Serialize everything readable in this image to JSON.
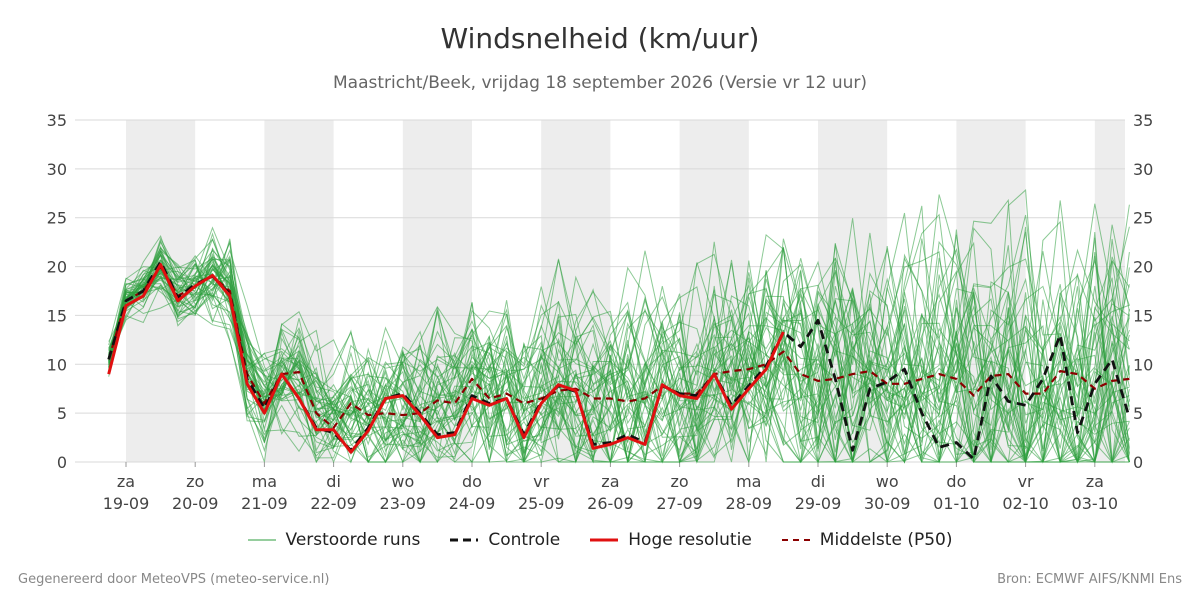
{
  "header": {
    "title": "Windsnelheid (km/uur)",
    "subtitle": "Maastricht/Beek, vrijdag 18 september 2026 (Versie vr 12 uur)"
  },
  "footer": {
    "left": "Gegenereerd door MeteoVPS (meteo-service.nl)",
    "right": "Bron: ECMWF AIFS/KNMI Ens"
  },
  "legend": {
    "ensemble": "Verstoorde runs",
    "control": "Controle",
    "hires": "Hoge resolutie",
    "median": "Middelste (P50)"
  },
  "colors": {
    "ensemble": "#2e9e3e",
    "control": "#111111",
    "hires": "#e01010",
    "median": "#8b0000",
    "band": "#ededed",
    "grid": "#d9d9d9"
  },
  "chart_data": {
    "type": "line",
    "x_unit": "days since 19-09 00:00 (label position = midnight of each day)",
    "xlim": [
      0,
      15.5
    ],
    "ylim": [
      0,
      35
    ],
    "yticks": [
      0,
      5,
      10,
      15,
      20,
      25,
      30,
      35
    ],
    "grid": true,
    "legend_position": "bottom",
    "shaded_bands": [
      [
        0,
        1
      ],
      [
        2,
        3
      ],
      [
        4,
        5
      ],
      [
        6,
        7
      ],
      [
        8,
        9
      ],
      [
        10,
        11
      ],
      [
        12,
        13
      ],
      [
        14,
        15
      ]
    ],
    "x_ticks": [
      {
        "day": "za",
        "date": "19-09"
      },
      {
        "day": "zo",
        "date": "20-09"
      },
      {
        "day": "ma",
        "date": "21-09"
      },
      {
        "day": "di",
        "date": "22-09"
      },
      {
        "day": "wo",
        "date": "23-09"
      },
      {
        "day": "do",
        "date": "24-09"
      },
      {
        "day": "vr",
        "date": "25-09"
      },
      {
        "day": "za",
        "date": "26-09"
      },
      {
        "day": "zo",
        "date": "27-09"
      },
      {
        "day": "ma",
        "date": "28-09"
      },
      {
        "day": "di",
        "date": "29-09"
      },
      {
        "day": "wo",
        "date": "30-09"
      },
      {
        "day": "do",
        "date": "01-10"
      },
      {
        "day": "vr",
        "date": "02-10"
      },
      {
        "day": "za",
        "date": "03-10"
      }
    ],
    "series": [
      {
        "name": "Hoge resolutie",
        "style": "solid",
        "x": [
          -0.25,
          0,
          0.25,
          0.5,
          0.75,
          1,
          1.25,
          1.5,
          1.75,
          2,
          2.25,
          2.5,
          2.75,
          3,
          3.25,
          3.5,
          3.75,
          4,
          4.25,
          4.5,
          4.75,
          5,
          5.25,
          5.5,
          5.75,
          6,
          6.25,
          6.5,
          6.75,
          7,
          7.25,
          7.5,
          7.75,
          8,
          8.25,
          8.5,
          8.75,
          9,
          9.25,
          9.5
        ],
        "y": [
          9,
          16,
          17,
          20.2,
          16.5,
          18,
          19.1,
          17,
          8,
          5,
          9,
          6.5,
          3.3,
          3.3,
          1,
          3.2,
          6.5,
          6.8,
          4.8,
          2.5,
          2.8,
          6.5,
          5.8,
          6.5,
          2.5,
          6,
          7.9,
          7.3,
          1.4,
          1.8,
          2.5,
          1.8,
          7.9,
          6.8,
          6.5,
          9,
          5.4,
          7.5,
          9.5,
          13.3
        ]
      },
      {
        "name": "Controle",
        "style": "dashed",
        "x": [
          -0.25,
          0,
          0.25,
          0.5,
          0.75,
          1,
          1.25,
          1.5,
          1.75,
          2,
          2.25,
          2.5,
          2.75,
          3,
          3.25,
          3.5,
          3.75,
          4,
          4.25,
          4.5,
          4.75,
          5,
          5.25,
          5.5,
          5.75,
          6,
          6.25,
          6.5,
          6.75,
          7,
          7.25,
          7.5,
          7.75,
          8,
          8.25,
          8.5,
          8.75,
          9,
          9.25,
          9.5,
          9.75,
          10,
          10.25,
          10.5,
          10.75,
          11,
          11.25,
          11.5,
          11.75,
          12,
          12.25,
          12.5,
          12.75,
          13,
          13.25,
          13.5,
          13.75,
          14,
          14.25,
          14.5
        ],
        "y": [
          10.5,
          16.5,
          17.5,
          20.5,
          16.8,
          18.2,
          19,
          17.2,
          8.5,
          5.5,
          9,
          6.5,
          3.5,
          3,
          1.2,
          3.5,
          6.5,
          7,
          5,
          2.8,
          3,
          6.8,
          6,
          6.5,
          2.8,
          6.2,
          7.8,
          7.2,
          1.8,
          2,
          2.8,
          2,
          7.8,
          7,
          6.8,
          9,
          5.8,
          7.8,
          9.8,
          13.3,
          11.8,
          14.5,
          8.5,
          1.2,
          7.5,
          8.2,
          9.5,
          5,
          1.5,
          2,
          0.3,
          8.8,
          6.2,
          5.8,
          8.5,
          13,
          3,
          8,
          10.5,
          4.5
        ]
      },
      {
        "name": "Middelste (P50)",
        "style": "dashed",
        "x": [
          -0.25,
          0,
          0.25,
          0.5,
          0.75,
          1,
          1.25,
          1.5,
          1.75,
          2,
          2.25,
          2.5,
          2.75,
          3,
          3.25,
          3.5,
          3.75,
          4,
          4.25,
          4.5,
          4.75,
          5,
          5.25,
          5.5,
          5.75,
          6,
          6.25,
          6.5,
          6.75,
          7,
          7.25,
          7.5,
          7.75,
          8,
          8.25,
          8.5,
          8.75,
          9,
          9.25,
          9.5,
          9.75,
          10,
          10.25,
          10.5,
          10.75,
          11,
          11.25,
          11.5,
          11.75,
          12,
          12.25,
          12.5,
          12.75,
          13,
          13.25,
          13.5,
          13.75,
          14,
          14.25,
          14.5
        ],
        "y": [
          10.5,
          16.5,
          17.5,
          20,
          17,
          18,
          19,
          17.5,
          9,
          6,
          9,
          9.2,
          5,
          3.5,
          6,
          4.8,
          5,
          4.8,
          5,
          6.3,
          6,
          8.5,
          6.5,
          7,
          6,
          6.5,
          7.3,
          7.5,
          6.5,
          6.5,
          6.2,
          6.5,
          7.8,
          7,
          7,
          9,
          9.3,
          9.5,
          10,
          11.3,
          9,
          8.3,
          8.5,
          9,
          9.3,
          8,
          8,
          8.5,
          9,
          8.5,
          6.8,
          8.8,
          9,
          7,
          7,
          9.3,
          9,
          7.5,
          8.3,
          8.5
        ]
      }
    ]
  }
}
